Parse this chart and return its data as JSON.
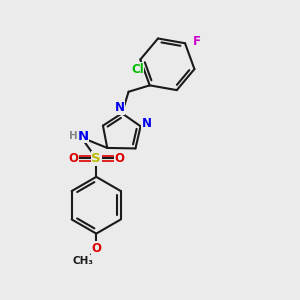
{
  "bg_color": "#ebebeb",
  "bond_color": "#1a1a1a",
  "bond_width": 1.5,
  "atom_colors": {
    "N": "#0000ee",
    "O": "#dd0000",
    "S": "#bbbb00",
    "Cl": "#00bb00",
    "F": "#cc00cc",
    "H": "#888888",
    "C": "#1a1a1a"
  },
  "font_size": 8.5,
  "fig_size": [
    3.0,
    3.0
  ],
  "dpi": 100,
  "xlim": [
    0,
    10
  ],
  "ylim": [
    0,
    10
  ]
}
